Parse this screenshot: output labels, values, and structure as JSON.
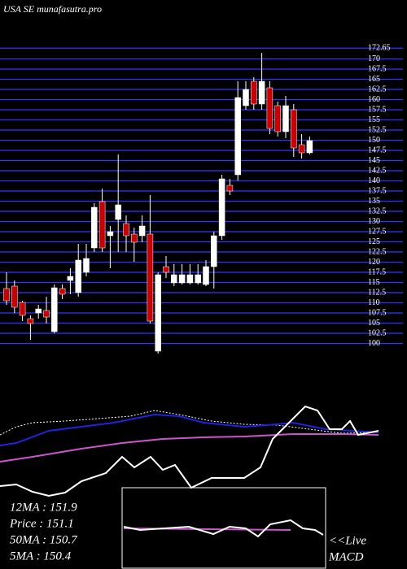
{
  "chart_data": {
    "type": "candlestick",
    "title": "USA SE munafasutra.pro",
    "ylim": [
      97.5,
      173.5
    ],
    "yticks": [
      100,
      102.5,
      105,
      107.5,
      110,
      112.5,
      115,
      117.5,
      120,
      122.5,
      125,
      127.5,
      130,
      132.5,
      135,
      137.5,
      140,
      142.5,
      145,
      147.5,
      150,
      152.5,
      155,
      157.5,
      160,
      162.5,
      165,
      167.5,
      170,
      172.65
    ],
    "grid": true,
    "grid_color": "#3333ff",
    "up_color": "#ffffff",
    "down_color": "#cc0000",
    "open": [
      113.5,
      114.1,
      110.1,
      106.1,
      107.5,
      108.1,
      102.9,
      113.5,
      115.5,
      112.5,
      117.5,
      123.5,
      134.9,
      126.5,
      130.5,
      129.5,
      126.9,
      126.5,
      126.9,
      98.1,
      118.9,
      114.9,
      114.9,
      114.9,
      114.9,
      114.5,
      118.9,
      126.5,
      138.9,
      141.5,
      158.5,
      164.5,
      158.9,
      162.9,
      158.5,
      152.1,
      157.5,
      148.9,
      146.9
    ],
    "close": [
      110.5,
      108.9,
      106.9,
      104.9,
      108.5,
      106.5,
      113.7,
      112.1,
      116.5,
      120.5,
      120.9,
      133.5,
      123.5,
      127.5,
      134.1,
      126.5,
      124.9,
      128.9,
      105.5,
      116.9,
      117.5,
      116.9,
      116.9,
      116.9,
      116.9,
      118.9,
      126.5,
      140.5,
      137.5,
      160.5,
      162.5,
      158.9,
      164.5,
      152.9,
      152.1,
      158.5,
      148.1,
      146.9,
      149.9
    ],
    "high": [
      117.5,
      115.5,
      110.5,
      106.9,
      109.5,
      111.5,
      114.5,
      114.5,
      118.5,
      124.5,
      124.5,
      134.5,
      138.1,
      128.9,
      146.5,
      131.5,
      128.5,
      131.5,
      136.5,
      117.5,
      121.5,
      119.5,
      119.5,
      119.5,
      119.5,
      120.5,
      127.5,
      141.5,
      140.5,
      164.5,
      164.5,
      165.5,
      171.5,
      164.5,
      159.5,
      160.9,
      158.9,
      151.5,
      150.9
    ],
    "low": [
      109.5,
      107.5,
      105.5,
      100.9,
      106.1,
      104.9,
      102.5,
      110.9,
      112.1,
      111.5,
      116.5,
      122.5,
      122.5,
      118.5,
      122.5,
      122.5,
      120.1,
      124.9,
      104.9,
      97.5,
      116.1,
      114.1,
      114.5,
      114.5,
      114.5,
      114.1,
      113.5,
      125.5,
      136.5,
      140.1,
      157.5,
      157.5,
      157.5,
      151.5,
      150.9,
      150.5,
      145.9,
      145.5,
      146.5
    ],
    "lower_panel": {
      "xlim": [
        0,
        465
      ],
      "ylim": [
        0,
        120
      ],
      "series": [
        {
          "color": "#ffffff",
          "dashed": true,
          "x": [
            0,
            20,
            40,
            80,
            120,
            160,
            190,
            220,
            260,
            300,
            340,
            380,
            420,
            465
          ],
          "values": [
            75,
            85,
            90,
            92,
            95,
            98,
            105,
            100,
            92,
            88,
            87,
            82,
            77,
            78
          ]
        },
        {
          "color": "#2222dd",
          "x": [
            0,
            20,
            60,
            100,
            140,
            190,
            220,
            250,
            300,
            340,
            360,
            400,
            465
          ],
          "values": [
            62,
            65,
            80,
            85,
            90,
            100,
            98,
            90,
            85,
            88,
            90,
            82,
            78
          ]
        },
        {
          "color": "#cc55cc",
          "x": [
            0,
            40,
            100,
            150,
            200,
            250,
            300,
            360,
            420,
            465
          ],
          "values": [
            42,
            48,
            58,
            65,
            70,
            72,
            73,
            76,
            76,
            75
          ]
        },
        {
          "color": "#ffffff",
          "x": [
            0,
            20,
            40,
            60,
            80,
            100,
            130,
            150,
            165,
            185,
            200,
            215,
            235,
            260,
            300,
            320,
            335,
            355,
            375,
            390,
            405,
            420,
            430,
            440,
            465
          ],
          "values": [
            12,
            14,
            5,
            0,
            4,
            18,
            28,
            48,
            35,
            48,
            32,
            38,
            10,
            22,
            22,
            35,
            70,
            90,
            110,
            105,
            82,
            82,
            92,
            75,
            80
          ]
        }
      ]
    },
    "macd": {
      "xlim": [
        0,
        245
      ],
      "ylim": [
        0,
        100
      ],
      "series": [
        {
          "color": "#cc55cc",
          "x": [
            0,
            205
          ],
          "values": [
            50,
            48
          ]
        },
        {
          "color": "#ffffff",
          "x": [
            0,
            20,
            50,
            80,
            110,
            130,
            150,
            165,
            180,
            205,
            220,
            235,
            245
          ],
          "values": [
            52,
            48,
            50,
            52,
            43,
            52,
            50,
            40,
            55,
            60,
            50,
            48,
            42
          ]
        }
      ]
    },
    "stats": [
      "12MA : 151.9",
      "Price : 151.1",
      "50MA : 150.7",
      "5MA : 150.4"
    ],
    "live_label": "<<Live",
    "macd_label": "MACD"
  }
}
